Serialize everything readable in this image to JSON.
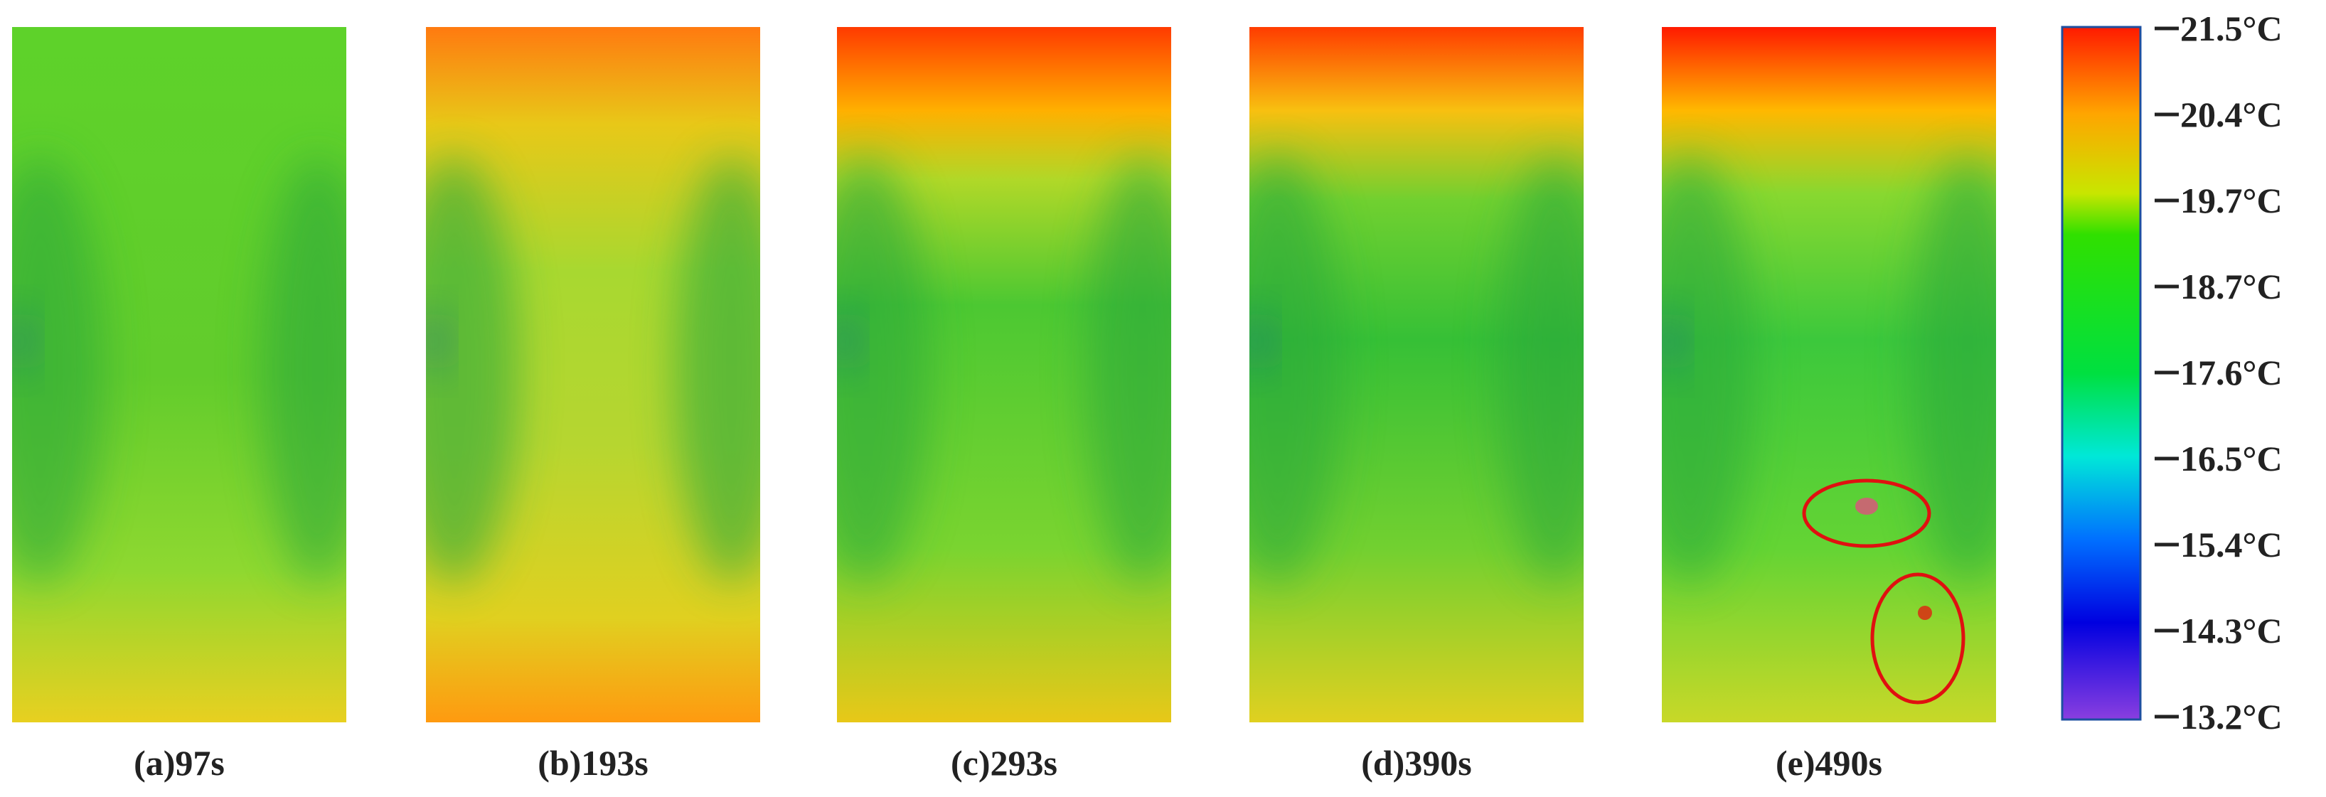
{
  "panels": [
    {
      "label": "(a)97s"
    },
    {
      "label": "(b)193s"
    },
    {
      "label": "(c)293s"
    },
    {
      "label": "(d)390s"
    },
    {
      "label": "(e)490s"
    }
  ],
  "colorbar": {
    "ticks": [
      "21.5°C",
      "20.4°C",
      "19.7°C",
      "18.7°C",
      "17.6°C",
      "16.5°C",
      "15.4°C",
      "14.3°C",
      "13.2°C"
    ]
  }
}
